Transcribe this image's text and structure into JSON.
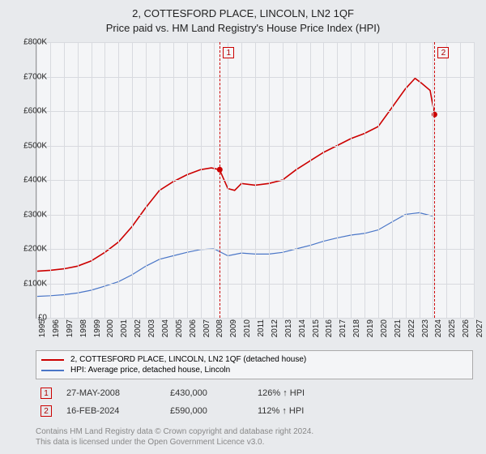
{
  "title_line1": "2, COTTESFORD PLACE, LINCOLN, LN2 1QF",
  "title_line2": "Price paid vs. HM Land Registry's House Price Index (HPI)",
  "chart": {
    "type": "line",
    "background_color": "#f4f5f7",
    "grid_color": "#d8dadf",
    "axis_color": "#999",
    "label_fontsize": 10,
    "x": {
      "min": 1995,
      "max": 2027,
      "ticks": [
        1995,
        1996,
        1997,
        1998,
        1999,
        2000,
        2001,
        2002,
        2003,
        2004,
        2005,
        2006,
        2007,
        2008,
        2009,
        2010,
        2011,
        2012,
        2013,
        2014,
        2015,
        2016,
        2017,
        2018,
        2019,
        2020,
        2021,
        2022,
        2023,
        2024,
        2025,
        2026,
        2027
      ]
    },
    "y": {
      "min": 0,
      "max": 800000,
      "tick_step": 100000,
      "tick_labels": [
        "£0",
        "£100K",
        "£200K",
        "£300K",
        "£400K",
        "£500K",
        "£600K",
        "£700K",
        "£800K"
      ]
    },
    "series": [
      {
        "name": "2, COTTESFORD PLACE, LINCOLN, LN2 1QF (detached house)",
        "color": "#cc0000",
        "width": 1.6,
        "points": [
          [
            1995.0,
            135000
          ],
          [
            1996.0,
            138000
          ],
          [
            1997.0,
            142000
          ],
          [
            1998.0,
            150000
          ],
          [
            1999.0,
            165000
          ],
          [
            2000.0,
            190000
          ],
          [
            2001.0,
            220000
          ],
          [
            2002.0,
            265000
          ],
          [
            2003.0,
            320000
          ],
          [
            2004.0,
            370000
          ],
          [
            2005.0,
            395000
          ],
          [
            2006.0,
            415000
          ],
          [
            2007.0,
            430000
          ],
          [
            2007.8,
            435000
          ],
          [
            2008.4,
            430000
          ],
          [
            2009.0,
            375000
          ],
          [
            2009.5,
            370000
          ],
          [
            2010.0,
            390000
          ],
          [
            2011.0,
            385000
          ],
          [
            2012.0,
            390000
          ],
          [
            2013.0,
            400000
          ],
          [
            2014.0,
            430000
          ],
          [
            2015.0,
            455000
          ],
          [
            2016.0,
            480000
          ],
          [
            2017.0,
            500000
          ],
          [
            2018.0,
            520000
          ],
          [
            2019.0,
            535000
          ],
          [
            2020.0,
            555000
          ],
          [
            2021.0,
            610000
          ],
          [
            2022.0,
            665000
          ],
          [
            2022.7,
            695000
          ],
          [
            2023.2,
            680000
          ],
          [
            2023.8,
            660000
          ],
          [
            2024.12,
            590000
          ]
        ],
        "sale_dots": [
          {
            "x": 2008.41,
            "y": 430000
          },
          {
            "x": 2024.12,
            "y": 590000
          }
        ]
      },
      {
        "name": "HPI: Average price, detached house, Lincoln",
        "color": "#4a76c7",
        "width": 1.2,
        "points": [
          [
            1995.0,
            62000
          ],
          [
            1996.0,
            64000
          ],
          [
            1997.0,
            67000
          ],
          [
            1998.0,
            72000
          ],
          [
            1999.0,
            80000
          ],
          [
            2000.0,
            92000
          ],
          [
            2001.0,
            105000
          ],
          [
            2002.0,
            125000
          ],
          [
            2003.0,
            150000
          ],
          [
            2004.0,
            170000
          ],
          [
            2005.0,
            180000
          ],
          [
            2006.0,
            190000
          ],
          [
            2007.0,
            198000
          ],
          [
            2008.0,
            200000
          ],
          [
            2009.0,
            180000
          ],
          [
            2010.0,
            188000
          ],
          [
            2011.0,
            185000
          ],
          [
            2012.0,
            185000
          ],
          [
            2013.0,
            190000
          ],
          [
            2014.0,
            200000
          ],
          [
            2015.0,
            210000
          ],
          [
            2016.0,
            222000
          ],
          [
            2017.0,
            232000
          ],
          [
            2018.0,
            240000
          ],
          [
            2019.0,
            245000
          ],
          [
            2020.0,
            255000
          ],
          [
            2021.0,
            278000
          ],
          [
            2022.0,
            300000
          ],
          [
            2023.0,
            305000
          ],
          [
            2024.0,
            295000
          ]
        ]
      }
    ],
    "vlines": [
      {
        "x": 2008.41,
        "color": "#cc0000",
        "label": "1"
      },
      {
        "x": 2024.12,
        "color": "#cc0000",
        "label": "2"
      }
    ]
  },
  "legend": {
    "items": [
      {
        "color": "#cc0000",
        "label": "2, COTTESFORD PLACE, LINCOLN, LN2 1QF (detached house)"
      },
      {
        "color": "#4a76c7",
        "label": "HPI: Average price, detached house, Lincoln"
      }
    ]
  },
  "sales": [
    {
      "marker": "1",
      "date": "27-MAY-2008",
      "price": "£430,000",
      "hpi": "126% ↑ HPI"
    },
    {
      "marker": "2",
      "date": "16-FEB-2024",
      "price": "£590,000",
      "hpi": "112% ↑ HPI"
    }
  ],
  "footer_line1": "Contains HM Land Registry data © Crown copyright and database right 2024.",
  "footer_line2": "This data is licensed under the Open Government Licence v3.0."
}
